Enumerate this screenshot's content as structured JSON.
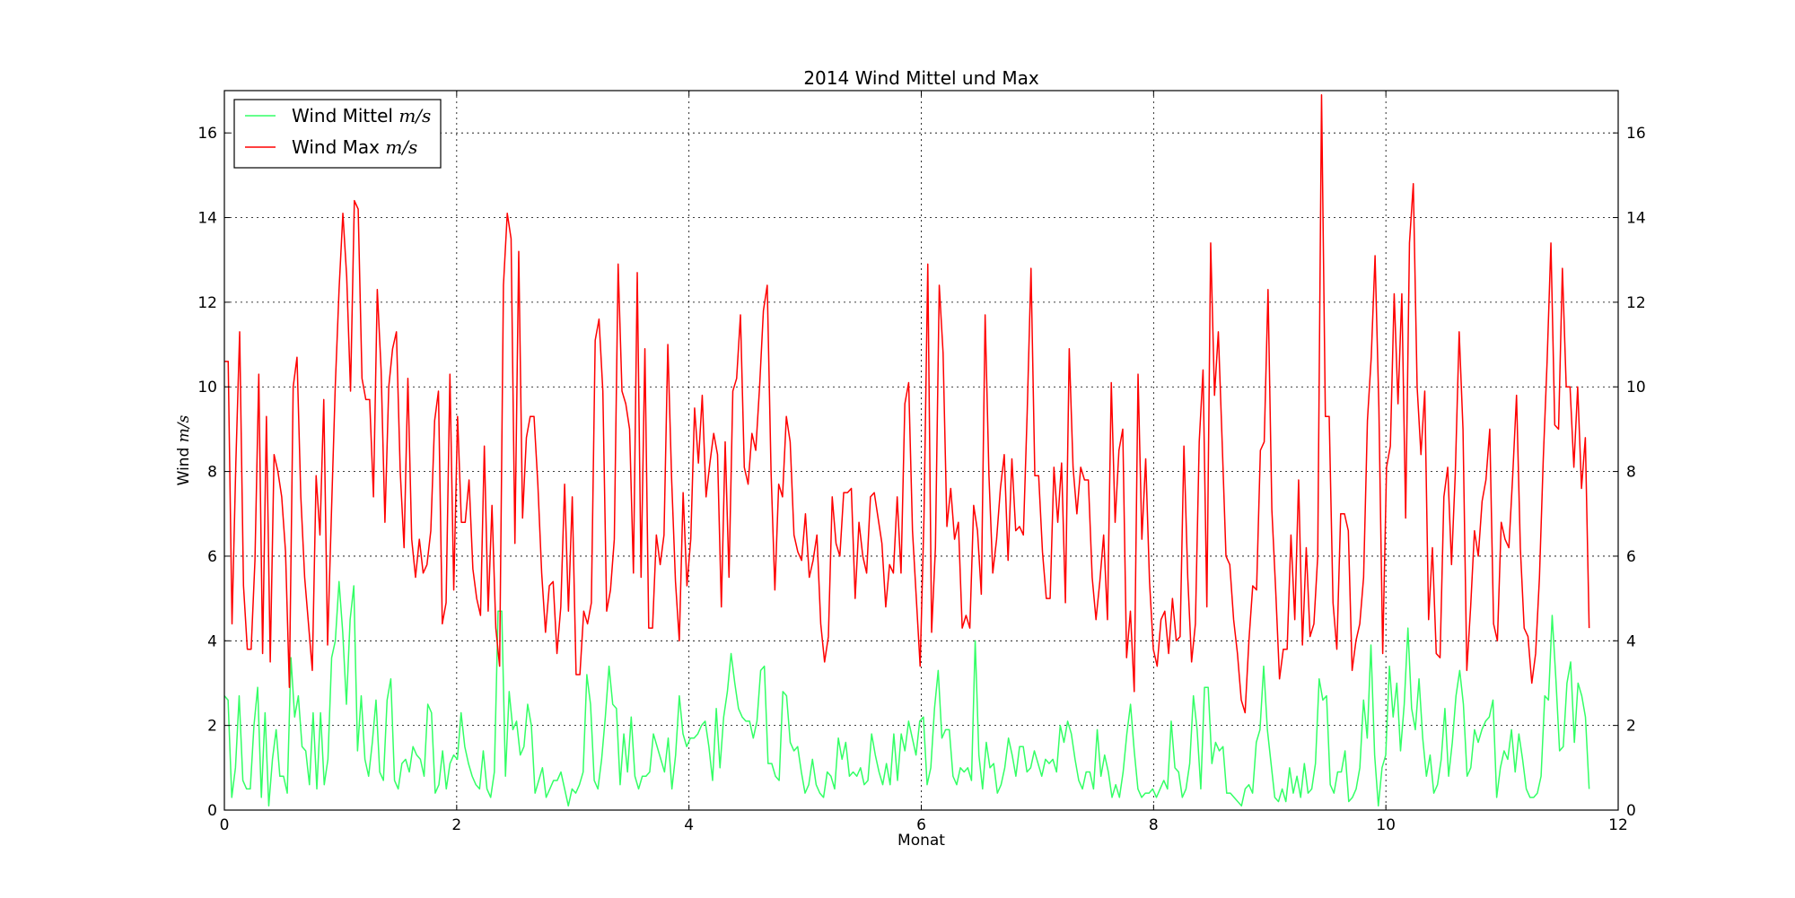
{
  "chart_data": {
    "type": "line",
    "title": "2014 Wind Mittel und Max",
    "xlabel": "Monat",
    "ylabel": "Wind",
    "ylabel_unit": "m/s",
    "xlim": [
      0,
      12
    ],
    "ylim": [
      0,
      17
    ],
    "xticks": [
      "0",
      "2",
      "4",
      "6",
      "8",
      "10",
      "12"
    ],
    "yticks": [
      "0",
      "2",
      "4",
      "6",
      "8",
      "10",
      "12",
      "14",
      "16"
    ],
    "grid": true,
    "legend_position": "upper-left",
    "series": [
      {
        "name": "Wind Mittel",
        "unit": "m/s",
        "color": "#33ff66",
        "values": [
          2.7,
          2.6,
          0.3,
          1.0,
          2.7,
          0.7,
          0.5,
          0.5,
          2.0,
          2.9,
          0.3,
          2.3,
          0.1,
          1.2,
          1.9,
          0.8,
          0.8,
          0.4,
          3.6,
          2.2,
          2.7,
          1.5,
          1.4,
          0.6,
          2.3,
          0.5,
          2.3,
          0.6,
          1.2,
          3.6,
          4.0,
          5.4,
          4.2,
          2.5,
          4.5,
          5.3,
          1.4,
          2.7,
          1.2,
          0.8,
          1.6,
          2.6,
          0.9,
          0.7,
          2.6,
          3.1,
          0.7,
          0.5,
          1.1,
          1.2,
          0.9,
          1.5,
          1.3,
          1.2,
          0.8,
          2.5,
          2.3,
          0.4,
          0.6,
          1.4,
          0.5,
          1.1,
          1.3,
          1.2,
          2.3,
          1.5,
          1.1,
          0.8,
          0.6,
          0.5,
          1.4,
          0.5,
          0.3,
          0.9,
          4.7,
          4.7,
          0.8,
          2.8,
          1.9,
          2.1,
          1.3,
          1.5,
          2.5,
          2.0,
          0.4,
          0.7,
          1.0,
          0.3,
          0.5,
          0.7,
          0.7,
          0.9,
          0.5,
          0.1,
          0.5,
          0.4,
          0.6,
          0.9,
          3.2,
          2.5,
          0.7,
          0.5,
          1.2,
          2.2,
          3.4,
          2.5,
          2.4,
          0.6,
          1.8,
          0.9,
          2.2,
          0.8,
          0.5,
          0.8,
          0.8,
          0.9,
          1.8,
          1.5,
          1.2,
          0.9,
          1.7,
          0.5,
          1.3,
          2.7,
          1.8,
          1.5,
          1.7,
          1.7,
          1.8,
          2.0,
          2.1,
          1.5,
          0.7,
          2.4,
          1.0,
          2.2,
          2.8,
          3.7,
          3.0,
          2.4,
          2.2,
          2.1,
          2.1,
          1.7,
          2.1,
          3.3,
          3.4,
          1.1,
          1.1,
          0.8,
          0.7,
          2.8,
          2.7,
          1.6,
          1.4,
          1.5,
          0.9,
          0.4,
          0.6,
          1.2,
          0.6,
          0.4,
          0.3,
          0.9,
          0.8,
          0.5,
          1.7,
          1.2,
          1.6,
          0.8,
          0.9,
          0.8,
          1.0,
          0.6,
          0.7,
          1.8,
          1.3,
          0.9,
          0.6,
          1.1,
          0.6,
          1.8,
          0.7,
          1.8,
          1.4,
          2.1,
          1.7,
          1.3,
          2.1,
          2.2,
          0.6,
          1.0,
          2.4,
          3.3,
          1.7,
          1.9,
          1.9,
          0.8,
          0.6,
          1.0,
          0.9,
          1.0,
          0.7,
          4.0,
          1.3,
          0.5,
          1.6,
          1.0,
          1.1,
          0.4,
          0.6,
          1.0,
          1.7,
          1.3,
          0.8,
          1.5,
          1.5,
          0.9,
          1.0,
          1.4,
          1.1,
          0.8,
          1.2,
          1.1,
          1.2,
          0.9,
          2.0,
          1.6,
          2.1,
          1.8,
          1.2,
          0.7,
          0.5,
          0.9,
          0.9,
          0.5,
          1.9,
          0.8,
          1.3,
          0.9,
          0.3,
          0.6,
          0.3,
          0.9,
          1.8,
          2.5,
          1.4,
          0.5,
          0.3,
          0.4,
          0.4,
          0.5,
          0.3,
          0.5,
          0.7,
          0.5,
          2.1,
          1.0,
          0.9,
          0.3,
          0.5,
          1.1,
          2.7,
          1.9,
          0.5,
          2.9,
          2.9,
          1.1,
          1.6,
          1.4,
          1.5,
          0.4,
          0.4,
          0.3,
          0.2,
          0.1,
          0.5,
          0.6,
          0.4,
          1.6,
          1.9,
          3.4,
          1.9,
          1.1,
          0.3,
          0.2,
          0.5,
          0.2,
          1.0,
          0.4,
          0.8,
          0.3,
          1.1,
          0.4,
          0.5,
          1.1,
          3.1,
          2.6,
          2.7,
          0.6,
          0.4,
          0.9,
          0.9,
          1.4,
          0.2,
          0.3,
          0.5,
          1.0,
          2.6,
          1.7,
          3.9,
          1.3,
          0.1,
          1.0,
          1.3,
          3.4,
          2.2,
          3.0,
          1.4,
          2.5,
          4.3,
          2.4,
          1.9,
          3.1,
          1.7,
          0.8,
          1.3,
          0.4,
          0.6,
          1.2,
          2.4,
          0.8,
          1.6,
          2.7,
          3.3,
          2.5,
          0.8,
          1.0,
          1.9,
          1.6,
          1.9,
          2.1,
          2.2,
          2.6,
          0.3,
          1.0,
          1.4,
          1.2,
          1.9,
          0.9,
          1.8,
          1.2,
          0.5,
          0.3,
          0.3,
          0.4,
          0.8,
          2.7,
          2.6,
          4.6,
          3.1,
          1.4,
          1.5,
          3.0,
          3.5,
          1.6,
          3.0,
          2.7,
          2.2,
          0.5
        ]
      },
      {
        "name": "Wind Max",
        "unit": "m/s",
        "color": "#ff0000",
        "values": [
          10.6,
          10.6,
          4.4,
          8.2,
          11.3,
          5.3,
          3.8,
          3.8,
          5.9,
          10.3,
          3.7,
          9.3,
          3.5,
          8.4,
          8.0,
          7.4,
          6.1,
          2.9,
          10.0,
          10.7,
          7.4,
          5.5,
          4.4,
          3.3,
          7.9,
          6.5,
          9.7,
          3.9,
          7.0,
          10.0,
          12.3,
          14.1,
          12.6,
          9.9,
          14.4,
          14.2,
          10.2,
          9.7,
          9.7,
          7.4,
          12.3,
          10.4,
          6.8,
          10.0,
          10.9,
          11.3,
          8.0,
          6.2,
          10.2,
          6.4,
          5.5,
          6.4,
          5.6,
          5.8,
          6.6,
          9.2,
          9.9,
          4.4,
          4.9,
          10.3,
          5.2,
          9.3,
          6.8,
          6.8,
          7.8,
          5.7,
          5.0,
          4.6,
          8.6,
          4.7,
          7.2,
          4.3,
          3.4,
          12.4,
          14.1,
          13.5,
          6.3,
          13.2,
          6.9,
          8.8,
          9.3,
          9.3,
          7.7,
          5.6,
          4.2,
          5.3,
          5.4,
          3.7,
          4.8,
          7.7,
          4.7,
          7.4,
          3.2,
          3.2,
          4.7,
          4.4,
          4.9,
          11.1,
          11.6,
          9.9,
          4.7,
          5.2,
          6.4,
          12.9,
          9.9,
          9.6,
          9.0,
          5.6,
          12.7,
          5.5,
          10.9,
          4.3,
          4.3,
          6.5,
          5.8,
          6.5,
          11.0,
          7.8,
          5.4,
          4.0,
          7.5,
          5.3,
          6.4,
          9.5,
          8.2,
          9.8,
          7.4,
          8.2,
          8.9,
          8.4,
          4.8,
          8.7,
          5.5,
          9.9,
          10.2,
          11.7,
          8.1,
          7.7,
          8.9,
          8.5,
          10.0,
          11.8,
          12.4,
          8.0,
          5.2,
          7.7,
          7.4,
          9.3,
          8.7,
          6.5,
          6.1,
          5.9,
          7.0,
          5.5,
          5.9,
          6.5,
          4.4,
          3.5,
          4.1,
          7.4,
          6.3,
          6.0,
          7.5,
          7.5,
          7.6,
          5.0,
          6.8,
          6.0,
          5.6,
          7.4,
          7.5,
          6.9,
          6.3,
          4.8,
          5.8,
          5.6,
          7.4,
          5.6,
          9.6,
          10.1,
          6.6,
          5.0,
          3.4,
          6.9,
          12.9,
          4.2,
          6.2,
          12.4,
          10.8,
          6.7,
          7.6,
          6.4,
          6.8,
          4.3,
          4.6,
          4.3,
          7.2,
          6.6,
          5.1,
          11.7,
          7.9,
          5.6,
          6.4,
          7.6,
          8.4,
          5.9,
          8.3,
          6.6,
          6.7,
          6.5,
          9.4,
          12.8,
          7.9,
          7.9,
          6.1,
          5.0,
          5.0,
          8.1,
          6.8,
          8.2,
          4.9,
          10.9,
          8.1,
          7.0,
          8.1,
          7.8,
          7.8,
          5.5,
          4.5,
          5.4,
          6.5,
          4.5,
          10.1,
          6.8,
          8.5,
          9.0,
          3.6,
          4.7,
          2.8,
          10.3,
          6.4,
          8.3,
          5.4,
          3.8,
          3.4,
          4.5,
          4.7,
          3.7,
          5.0,
          4.0,
          4.1,
          8.6,
          5.5,
          3.5,
          4.4,
          8.7,
          10.4,
          4.8,
          13.4,
          9.8,
          11.3,
          8.7,
          6.0,
          5.8,
          4.5,
          3.7,
          2.6,
          2.3,
          4.0,
          5.3,
          5.2,
          8.5,
          8.7,
          12.3,
          7.1,
          5.2,
          3.1,
          3.8,
          3.8,
          6.5,
          4.5,
          7.8,
          3.9,
          6.2,
          4.1,
          4.4,
          6.0,
          16.9,
          9.3,
          9.3,
          4.9,
          3.8,
          7.0,
          7.0,
          6.6,
          3.3,
          4.0,
          4.4,
          5.5,
          9.2,
          10.7,
          13.1,
          9.5,
          3.7,
          8.1,
          8.6,
          12.2,
          9.6,
          12.2,
          6.9,
          13.4,
          14.8,
          10.0,
          8.4,
          9.9,
          4.5,
          6.2,
          3.7,
          3.6,
          7.4,
          8.1,
          5.8,
          8.0,
          11.3,
          9.0,
          3.3,
          4.8,
          6.6,
          6.0,
          7.3,
          7.8,
          9.0,
          4.4,
          4.0,
          6.8,
          6.4,
          6.2,
          7.9,
          9.8,
          6.2,
          4.3,
          4.1,
          3.0,
          3.7,
          5.5,
          8.3,
          10.6,
          13.4,
          9.1,
          9.0,
          12.8,
          10.0,
          10.0,
          8.1,
          10.0,
          7.6,
          8.8,
          4.3
        ]
      }
    ]
  }
}
